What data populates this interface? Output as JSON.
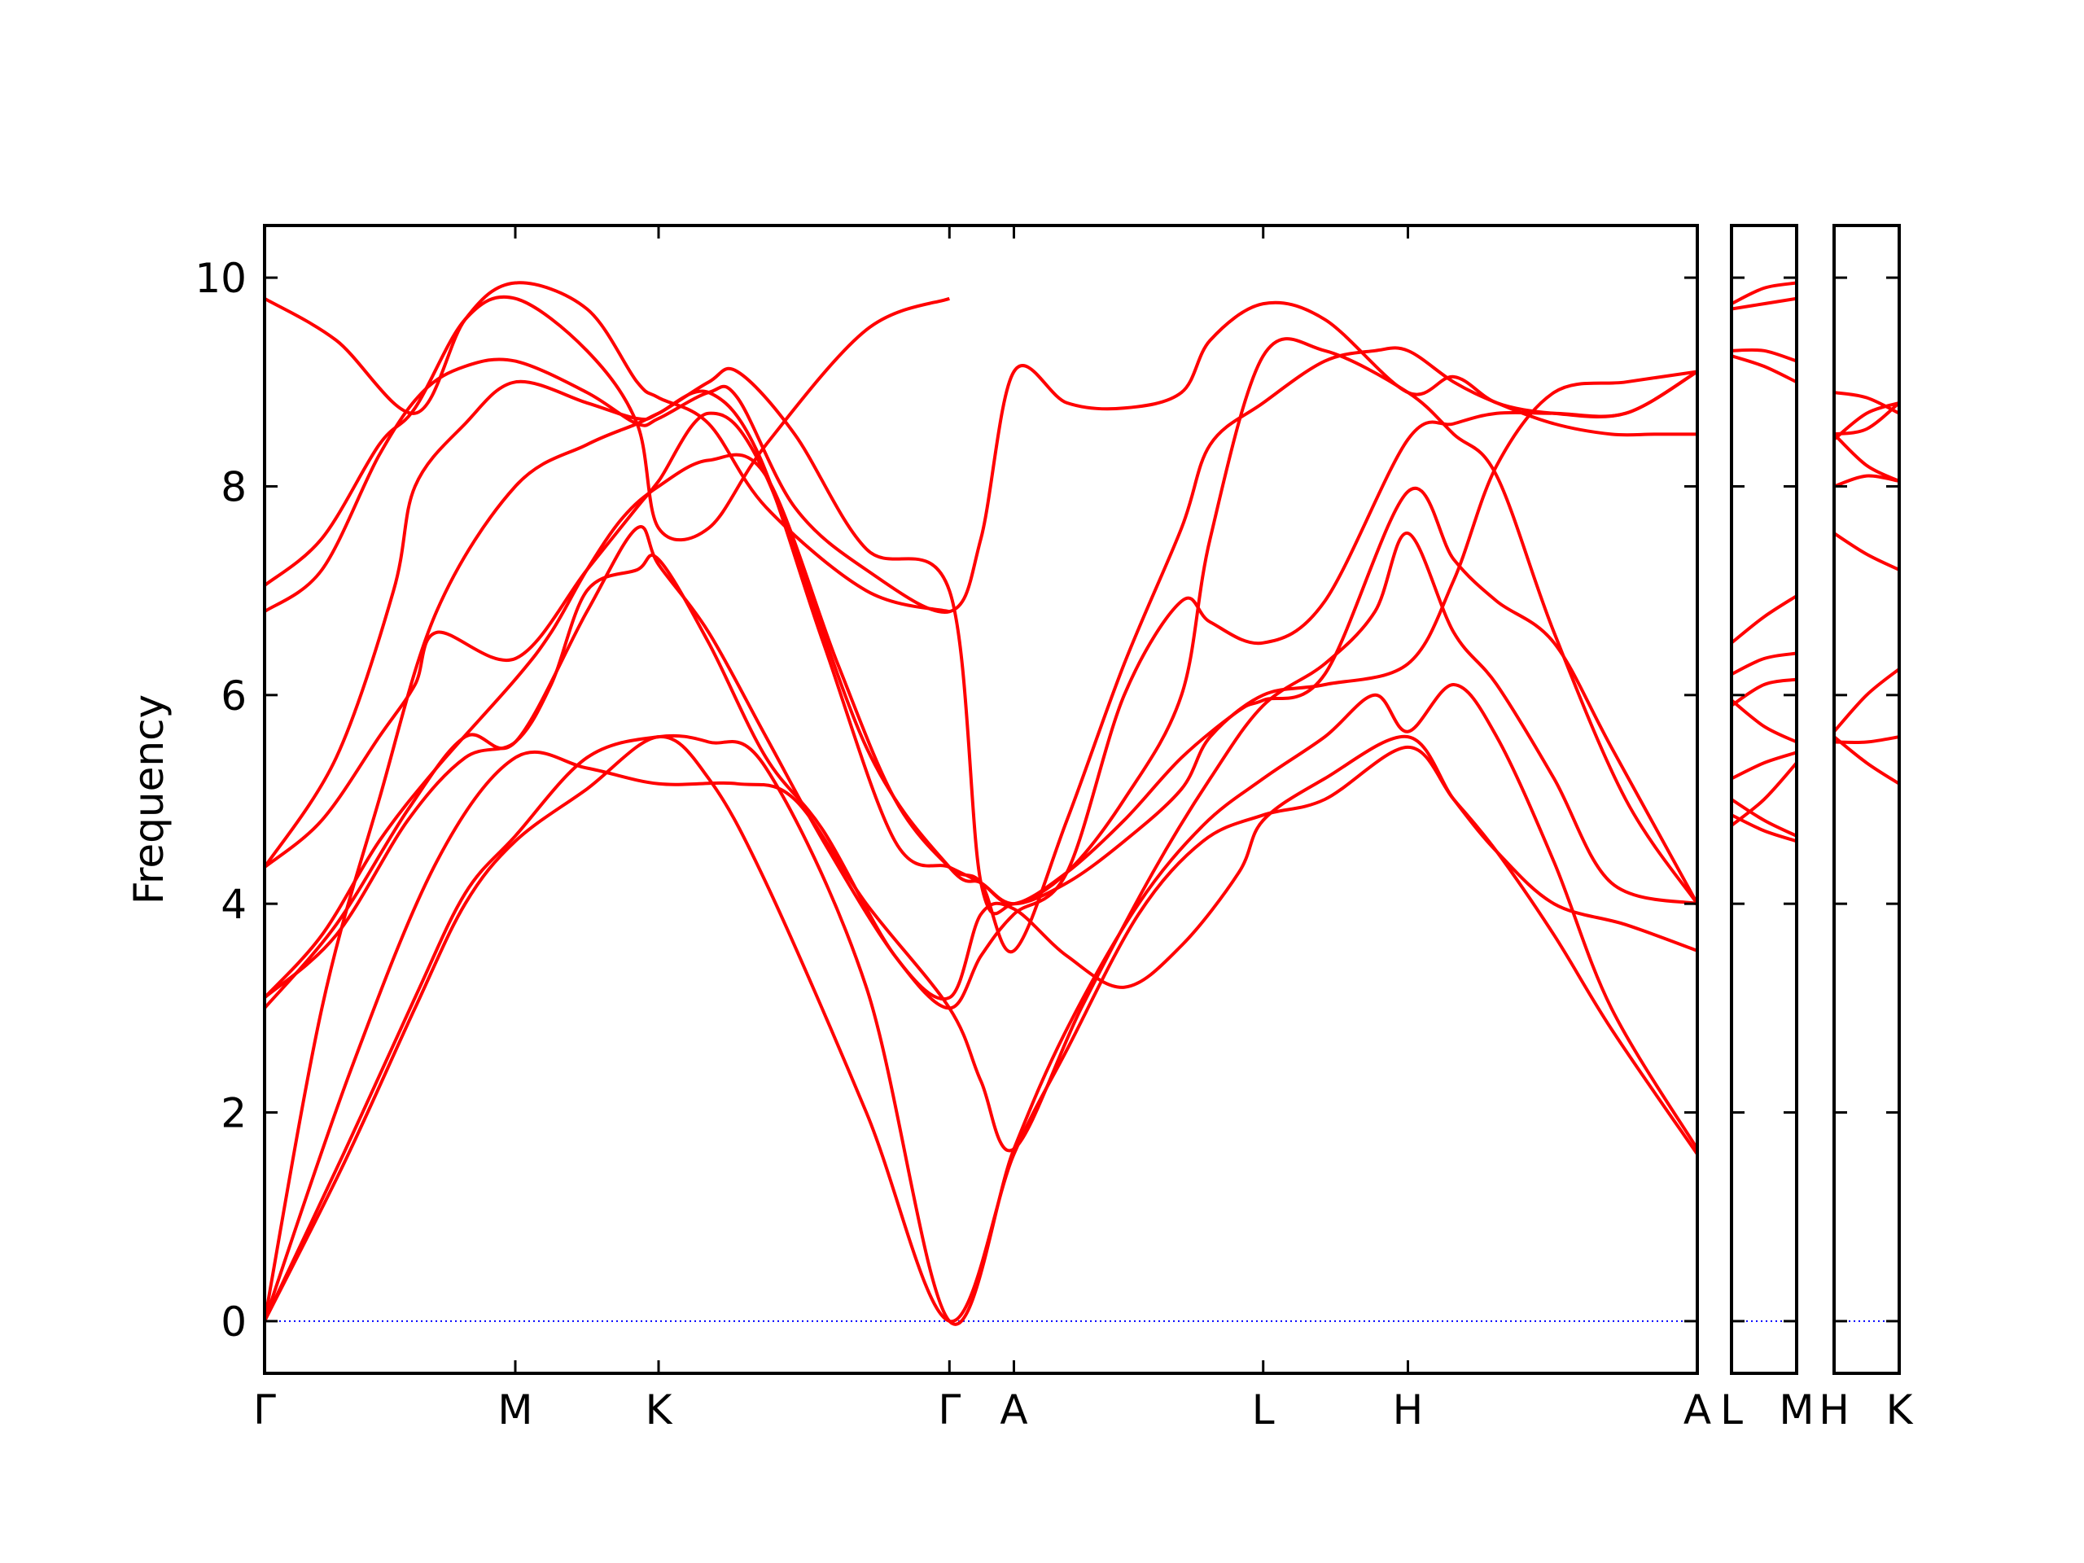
{
  "chart_data": {
    "type": "line",
    "ylabel": "Frequency",
    "ylim": [
      -0.5,
      10.5
    ],
    "yticks": [
      0,
      2,
      4,
      6,
      8,
      10
    ],
    "grid": false,
    "band_color": "#ff0000",
    "zero_line_color": "#0000ff",
    "panels": [
      {
        "name": "panel-main",
        "xlim": [
          0,
          1.0
        ],
        "ticks": [
          {
            "label": "Γ",
            "x": 0.0
          },
          {
            "label": "M",
            "x": 0.175
          },
          {
            "label": "K",
            "x": 0.275
          },
          {
            "label": "Γ",
            "x": 0.478
          },
          {
            "label": "A",
            "x": 0.523
          },
          {
            "label": "L",
            "x": 0.697
          },
          {
            "label": "H",
            "x": 0.798
          },
          {
            "label": "A",
            "x": 1.0
          }
        ],
        "bands": [
          {
            "x": [
              0,
              0.055,
              0.105,
              0.14,
              0.175,
              0.225,
              0.275,
              0.31,
              0.35,
              0.42,
              0.478,
              0.523,
              0.56,
              0.61,
              0.655,
              0.697,
              0.74,
              0.798,
              0.83,
              0.86,
              0.9,
              0.94,
              1.0
            ],
            "y": [
              0,
              1.5,
              3.0,
              4.0,
              4.6,
              5.1,
              5.6,
              5.2,
              4.2,
              2.0,
              0,
              1.6,
              2.6,
              3.9,
              4.6,
              4.85,
              5.0,
              5.5,
              5.0,
              4.5,
              3.7,
              2.8,
              1.6
            ]
          },
          {
            "x": [
              0,
              0.055,
              0.105,
              0.14,
              0.175,
              0.225,
              0.275,
              0.31,
              0.35,
              0.42,
              0.478,
              0.523,
              0.56,
              0.61,
              0.655,
              0.697,
              0.74,
              0.775,
              0.798,
              0.83,
              0.86,
              0.9,
              0.94,
              1.0
            ],
            "y": [
              0,
              1.6,
              3.1,
              4.1,
              4.65,
              5.4,
              5.6,
              5.55,
              5.3,
              3.2,
              0,
              1.65,
              2.8,
              4.0,
              4.75,
              5.2,
              5.6,
              6.0,
              5.65,
              6.1,
              5.6,
              4.4,
              3.0,
              1.65
            ]
          },
          {
            "x": [
              0,
              0.06,
              0.12,
              0.175,
              0.225,
              0.275,
              0.33,
              0.37,
              0.42,
              0.478,
              0.5,
              0.523,
              0.57,
              0.62,
              0.66,
              0.697,
              0.74,
              0.775,
              0.798,
              0.83,
              0.86,
              0.9,
              0.94,
              1.0
            ],
            "y": [
              0,
              2.4,
              4.4,
              5.4,
              5.3,
              5.15,
              5.15,
              5.0,
              4.0,
              3.0,
              2.3,
              1.65,
              3.0,
              4.3,
              5.2,
              5.9,
              6.3,
              6.8,
              7.55,
              6.6,
              6.1,
              5.2,
              4.2,
              4.0
            ]
          },
          {
            "x": [
              0,
              0.04,
              0.08,
              0.12,
              0.175,
              0.225,
              0.26,
              0.275,
              0.31,
              0.345,
              0.39,
              0.44,
              0.478,
              0.5,
              0.523,
              0.56,
              0.6,
              0.64,
              0.68,
              0.697,
              0.74,
              0.798,
              0.83,
              0.86,
              0.9,
              0.94,
              1.0
            ],
            "y": [
              0,
              3.0,
              5.0,
              6.8,
              8.0,
              8.4,
              8.6,
              8.7,
              8.9,
              8.3,
              6.5,
              4.6,
              4.35,
              4.2,
              4.0,
              4.3,
              4.8,
              5.4,
              5.85,
              5.95,
              6.2,
              7.95,
              7.3,
              6.9,
              6.5,
              5.5,
              4.0
            ]
          },
          {
            "x": [
              0,
              0.05,
              0.1,
              0.14,
              0.175,
              0.225,
              0.26,
              0.275,
              0.31,
              0.35,
              0.39,
              0.44,
              0.478,
              0.5,
              0.523,
              0.56,
              0.6,
              0.64,
              0.66,
              0.697,
              0.74,
              0.798,
              0.83,
              0.86,
              0.9,
              0.95,
              1.0
            ],
            "y": [
              3.0,
              3.8,
              4.9,
              5.6,
              5.55,
              6.8,
              7.6,
              7.25,
              6.6,
              5.6,
              4.6,
              3.5,
              3.0,
              3.5,
              3.9,
              4.3,
              6.0,
              6.9,
              6.7,
              6.5,
              6.9,
              8.45,
              8.6,
              8.7,
              8.7,
              8.7,
              9.1
            ]
          },
          {
            "x": [
              0,
              0.05,
              0.1,
              0.14,
              0.175,
              0.2,
              0.225,
              0.26,
              0.275,
              0.31,
              0.35,
              0.39,
              0.44,
              0.478,
              0.5,
              0.523,
              0.56,
              0.6,
              0.64,
              0.68,
              0.697,
              0.74,
              0.798,
              0.83,
              0.86,
              0.9,
              0.95,
              1.0
            ],
            "y": [
              3.1,
              3.7,
              4.8,
              5.4,
              5.55,
              6.1,
              7.0,
              7.2,
              7.3,
              6.5,
              5.4,
              4.7,
              3.5,
              3.1,
              3.9,
              3.95,
              3.5,
              3.2,
              3.6,
              4.3,
              4.8,
              5.2,
              5.6,
              5.0,
              4.5,
              4.0,
              3.8,
              3.55
            ]
          },
          {
            "x": [
              0,
              0.04,
              0.08,
              0.12,
              0.175,
              0.2,
              0.225,
              0.25,
              0.275,
              0.31,
              0.35,
              0.4,
              0.44,
              0.478,
              0.5,
              0.523,
              0.56,
              0.6,
              0.64,
              0.66,
              0.697,
              0.74,
              0.775,
              0.798,
              0.83,
              0.86,
              0.9,
              0.94,
              0.97,
              1.0
            ],
            "y": [
              3.1,
              3.7,
              4.6,
              5.3,
              6.15,
              6.6,
              7.2,
              7.7,
              8.0,
              8.25,
              8.1,
              6.3,
              5.0,
              4.35,
              4.2,
              3.55,
              4.8,
              6.3,
              7.6,
              8.4,
              8.8,
              9.2,
              9.3,
              9.3,
              9.0,
              8.8,
              8.6,
              8.5,
              8.5,
              8.5
            ]
          },
          {
            "x": [
              0,
              0.04,
              0.08,
              0.105,
              0.12,
              0.175,
              0.225,
              0.26,
              0.275,
              0.31,
              0.35,
              0.42,
              0.478,
              0.5,
              0.523,
              0.56,
              0.6,
              0.64,
              0.66,
              0.697,
              0.74,
              0.798,
              0.83,
              0.86,
              0.9,
              0.95,
              1.0
            ],
            "y": [
              4.35,
              4.8,
              5.6,
              6.1,
              6.6,
              6.35,
              7.2,
              7.8,
              8.05,
              8.7,
              8.1,
              5.5,
              4.35,
              4.2,
              4.0,
              4.2,
              4.6,
              5.1,
              5.6,
              6.0,
              6.1,
              6.3,
              7.1,
              8.2,
              8.9,
              9.0,
              9.1
            ]
          },
          {
            "x": [
              0,
              0.05,
              0.09,
              0.105,
              0.14,
              0.175,
              0.225,
              0.26,
              0.275,
              0.31,
              0.33,
              0.37,
              0.42,
              0.478,
              0.5,
              0.523,
              0.56,
              0.6,
              0.64,
              0.66,
              0.697,
              0.74,
              0.798,
              0.83,
              0.86,
              0.9,
              0.95,
              1.0
            ],
            "y": [
              4.35,
              5.4,
              7.0,
              8.0,
              8.6,
              9.0,
              8.8,
              8.65,
              8.7,
              9.0,
              9.1,
              8.5,
              7.4,
              7.0,
              4.2,
              4.0,
              4.3,
              5.0,
              6.0,
              7.5,
              9.25,
              9.3,
              8.9,
              8.5,
              8.1,
              6.6,
              5.0,
              4.0
            ]
          },
          {
            "x": [
              0,
              0.04,
              0.08,
              0.11,
              0.14,
              0.175,
              0.225,
              0.26,
              0.275,
              0.31,
              0.33,
              0.37,
              0.42,
              0.478,
              0.5,
              0.523,
              0.56,
              0.6,
              0.64,
              0.66,
              0.697,
              0.74,
              0.798,
              0.83,
              0.86,
              0.9,
              0.95,
              1.0
            ],
            "y": [
              6.8,
              7.2,
              8.3,
              8.9,
              9.15,
              9.2,
              8.9,
              8.6,
              8.65,
              8.9,
              8.85,
              7.8,
              7.2,
              6.8,
              7.5,
              9.1,
              8.8,
              8.75,
              8.9,
              9.4,
              9.75,
              9.6,
              8.9,
              9.05,
              8.8,
              8.7,
              8.7,
              9.1
            ]
          },
          {
            "x": [
              0,
              0.04,
              0.08,
              0.105,
              0.14,
              0.175,
              0.225,
              0.26,
              0.275,
              0.31,
              0.35,
              0.42,
              0.478
            ],
            "y": [
              7.05,
              7.5,
              8.4,
              8.75,
              9.6,
              9.8,
              9.3,
              8.6,
              7.6,
              7.6,
              8.4,
              9.5,
              9.8
            ]
          },
          {
            "x": [
              0,
              0.05,
              0.105,
              0.14,
              0.175,
              0.225,
              0.26,
              0.275,
              0.31,
              0.35,
              0.42,
              0.478
            ],
            "y": [
              9.8,
              9.4,
              8.7,
              9.6,
              9.95,
              9.7,
              9.0,
              8.85,
              8.6,
              7.8,
              7.0,
              6.8
            ]
          }
        ]
      },
      {
        "name": "panel-lm",
        "xlim": [
          0,
          1.0
        ],
        "ticks": [
          {
            "label": "L",
            "x": 0.0
          },
          {
            "label": "M",
            "x": 1.0
          }
        ],
        "bands": [
          {
            "x": [
              0,
              0.5,
              1.0
            ],
            "y": [
              4.85,
              4.7,
              4.6
            ]
          },
          {
            "x": [
              0,
              0.5,
              1.0
            ],
            "y": [
              5.0,
              4.8,
              4.65
            ]
          },
          {
            "x": [
              0,
              0.5,
              1.0
            ],
            "y": [
              5.2,
              5.35,
              5.45
            ]
          },
          {
            "x": [
              0,
              0.5,
              1.0
            ],
            "y": [
              5.95,
              5.7,
              5.55
            ]
          },
          {
            "x": [
              0,
              0.5,
              1.0
            ],
            "y": [
              4.75,
              5.0,
              5.35
            ]
          },
          {
            "x": [
              0,
              0.5,
              1.0
            ],
            "y": [
              5.9,
              6.1,
              6.15
            ]
          },
          {
            "x": [
              0,
              0.5,
              1.0
            ],
            "y": [
              6.2,
              6.35,
              6.4
            ]
          },
          {
            "x": [
              0,
              0.5,
              1.0
            ],
            "y": [
              6.5,
              6.75,
              6.95
            ]
          },
          {
            "x": [
              0,
              0.5,
              1.0
            ],
            "y": [
              9.25,
              9.15,
              9.0
            ]
          },
          {
            "x": [
              0,
              0.5,
              1.0
            ],
            "y": [
              9.3,
              9.3,
              9.2
            ]
          },
          {
            "x": [
              0,
              0.5,
              1.0
            ],
            "y": [
              9.7,
              9.75,
              9.8
            ]
          },
          {
            "x": [
              0,
              0.5,
              1.0
            ],
            "y": [
              9.75,
              9.9,
              9.95
            ]
          }
        ]
      },
      {
        "name": "panel-hk",
        "xlim": [
          0,
          1.0
        ],
        "ticks": [
          {
            "label": "H",
            "x": 0.0
          },
          {
            "label": "K",
            "x": 1.0
          }
        ],
        "bands": [
          {
            "x": [
              0,
              0.5,
              1.0
            ],
            "y": [
              5.6,
              5.35,
              5.15
            ]
          },
          {
            "x": [
              0,
              0.5,
              1.0
            ],
            "y": [
              5.55,
              5.55,
              5.6
            ]
          },
          {
            "x": [
              0,
              0.5,
              1.0
            ],
            "y": [
              5.65,
              6.0,
              6.25
            ]
          },
          {
            "x": [
              0,
              0.5,
              1.0
            ],
            "y": [
              7.55,
              7.35,
              7.2
            ]
          },
          {
            "x": [
              0,
              0.5,
              1.0
            ],
            "y": [
              8.0,
              8.1,
              8.05
            ]
          },
          {
            "x": [
              0,
              0.5,
              1.0
            ],
            "y": [
              8.5,
              8.2,
              8.05
            ]
          },
          {
            "x": [
              0,
              0.5,
              1.0
            ],
            "y": [
              8.45,
              8.7,
              8.8
            ]
          },
          {
            "x": [
              0,
              0.5,
              1.0
            ],
            "y": [
              8.9,
              8.85,
              8.7
            ]
          },
          {
            "x": [
              0,
              0.5,
              1.0
            ],
            "y": [
              8.5,
              8.55,
              8.8
            ]
          }
        ]
      }
    ]
  }
}
